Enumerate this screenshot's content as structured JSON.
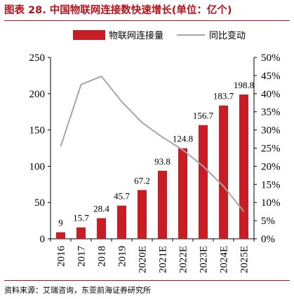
{
  "figure": {
    "title": "图表 28. 中国物联网连接数快速增长(单位：亿个)",
    "source": "资料来源：艾瑞咨询，东亚前海证券研究所"
  },
  "chart_data": {
    "type": "bar",
    "title": "图表 28. 中国物联网连接数快速增长(单位：亿个)",
    "unit": "亿个",
    "categories": [
      "2016",
      "2017",
      "2018",
      "2019",
      "2020E",
      "2021E",
      "2022E",
      "2023E",
      "2024E",
      "2025E"
    ],
    "series": [
      {
        "name": "物联网连接量",
        "type": "bar",
        "axis": "left",
        "color": "#c81d25",
        "values": [
          9,
          15.7,
          28.4,
          45.7,
          67.2,
          93.8,
          124.8,
          156.7,
          183.7,
          198.8
        ],
        "data_labels": [
          "9",
          "15.7",
          "28.4",
          "45.7",
          "67.2",
          "93.8",
          "124.8",
          "156.7",
          "183.7",
          "198.8"
        ]
      },
      {
        "name": "同比变动",
        "type": "line",
        "axis": "right",
        "color": "#a6a6a6",
        "values": [
          25.5,
          42.5,
          44.8,
          37.8,
          32.0,
          28.0,
          24.5,
          20.0,
          14.5,
          7.5
        ]
      }
    ],
    "left_axis": {
      "ylim": [
        0,
        250
      ],
      "ticks": [
        "0",
        "50",
        "100",
        "150",
        "200",
        "250"
      ]
    },
    "right_axis": {
      "ylim": [
        0,
        50
      ],
      "ticks": [
        "0%",
        "5%",
        "10%",
        "15%",
        "20%",
        "25%",
        "30%",
        "35%",
        "40%",
        "45%",
        "50%"
      ]
    },
    "legend": {
      "position": "top",
      "items": [
        "物联网连接量",
        "同比变动"
      ]
    },
    "grid": false
  }
}
